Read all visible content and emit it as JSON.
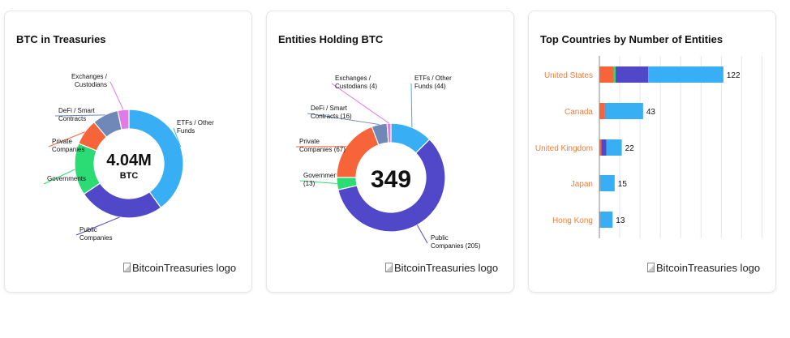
{
  "cards": [
    {
      "title": "BTC in Treasuries",
      "center_main": "4.04M",
      "center_sub": "BTC",
      "logo_alt": "BitcoinTreasuries logo"
    },
    {
      "title": "Entities Holding BTC",
      "center_main": "349",
      "logo_alt": "BitcoinTreasuries logo"
    },
    {
      "title": "Top Countries by Number of Entities",
      "logo_alt": "BitcoinTreasuries logo"
    }
  ],
  "chart_data": [
    {
      "type": "pie",
      "title": "BTC in Treasuries",
      "center_text": "4.04M BTC",
      "slices": [
        {
          "label": "ETFs / Other Funds",
          "value": 36,
          "color": "#38aef5"
        },
        {
          "label": "Public Companies",
          "value": 23,
          "color": "#5048c8"
        },
        {
          "label": "Governments",
          "value": 14,
          "color": "#2bdc75"
        },
        {
          "label": "Private Companies",
          "value": 7,
          "color": "#f7643a"
        },
        {
          "label": "DeFi / Smart Contracts",
          "value": 7,
          "color": "#6f88b7"
        },
        {
          "label": "Exchanges / Custodians",
          "value": 3,
          "color": "#e07ae6"
        }
      ]
    },
    {
      "type": "pie",
      "title": "Entities Holding BTC",
      "center_text": "349",
      "slices": [
        {
          "label": "ETFs / Other Funds (44)",
          "value": 44,
          "color": "#38aef5"
        },
        {
          "label": "Public Companies (205)",
          "value": 205,
          "color": "#5048c8"
        },
        {
          "label": "Governments (13)",
          "value": 13,
          "color": "#2bdc75"
        },
        {
          "label": "Private Companies (67)",
          "value": 67,
          "color": "#f7643a"
        },
        {
          "label": "DeFi / Smart Contracts (16)",
          "value": 16,
          "color": "#6f88b7"
        },
        {
          "label": "Exchanges / Custodians (4)",
          "value": 4,
          "color": "#e07ae6"
        }
      ]
    },
    {
      "type": "bar",
      "orientation": "horizontal",
      "stacked": true,
      "title": "Top Countries by Number of Entities",
      "categories": [
        "United States",
        "Canada",
        "United Kingdom",
        "Japan",
        "Hong Kong"
      ],
      "totals": [
        122,
        43,
        22,
        15,
        13
      ],
      "series": [
        {
          "values": [
            14,
            5,
            2,
            1,
            1
          ],
          "color": "#f7643a"
        },
        {
          "values": [
            2,
            0,
            0,
            0,
            0
          ],
          "color": "#2bdc75"
        },
        {
          "values": [
            0,
            1,
            0,
            0,
            0
          ],
          "color": "#6f88b7"
        },
        {
          "values": [
            32,
            0,
            5,
            0,
            0
          ],
          "color": "#5048c8"
        },
        {
          "values": [
            74,
            37,
            15,
            14,
            12
          ],
          "color": "#38aef5"
        }
      ],
      "xlim": [
        0,
        170
      ],
      "grid": true
    }
  ]
}
